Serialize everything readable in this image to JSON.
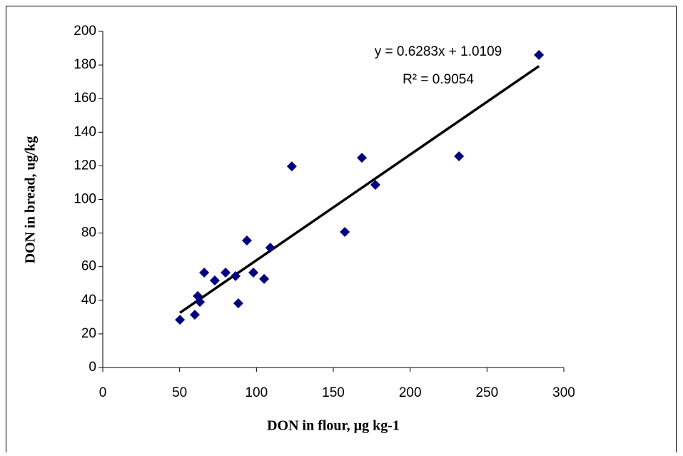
{
  "chart_data": {
    "type": "scatter",
    "xlabel": "DON in flour, µg kg-1",
    "ylabel": "DON in bread, ug/kg",
    "x": [
      50.2,
      59.9,
      61.8,
      63.2,
      66,
      72.9,
      79.9,
      86.4,
      88.2,
      93.8,
      98,
      105,
      109,
      123,
      157.5,
      168.6,
      177.4,
      231.8,
      283.8
    ],
    "values": [
      28.4,
      31.4,
      42.5,
      39,
      56.5,
      51.8,
      56.5,
      54.4,
      38.2,
      75.6,
      56.5,
      52.7,
      71.3,
      119.7,
      80.7,
      124.8,
      108.7,
      125.7,
      186
    ],
    "color": "#00007f",
    "xlim": [
      0,
      300
    ],
    "xticks": [
      0,
      50,
      100,
      150,
      200,
      250,
      300
    ],
    "ylim": [
      0,
      200
    ],
    "yticks": [
      0,
      20,
      40,
      60,
      80,
      100,
      120,
      140,
      160,
      180,
      200
    ],
    "grid": false,
    "trendline": {
      "slope": 0.6283,
      "intercept": 1.0109,
      "color": "#000000"
    },
    "annotations": [
      "y = 0.6283x + 1.0109",
      "R² = 0.9054"
    ]
  }
}
